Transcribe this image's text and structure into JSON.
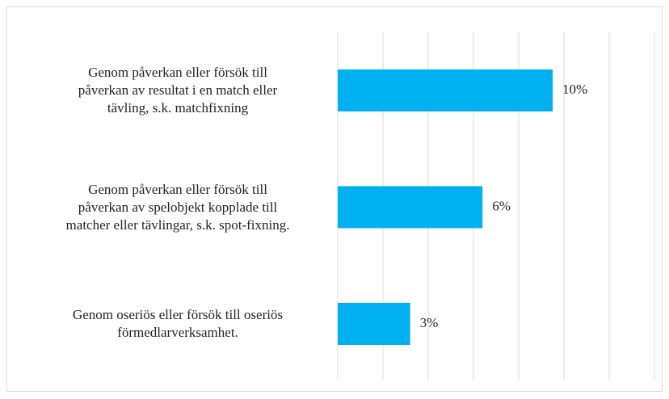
{
  "chart_data": {
    "type": "hbar",
    "categories": [
      "Genom påverkan eller försök till\npåverkan av resultat i en match eller\ntävling, s.k. matchfixning",
      "Genom påverkan eller försök till\npåverkan av spelobjekt kopplade till\nmatcher eller tävlingar, s.k. spot-fixning.",
      "Genom oseriös eller försök till oseriös\nförmedlarverksamhet."
    ],
    "values": [
      9.5,
      6.4,
      3.2
    ],
    "value_labels": [
      "10%",
      "6%",
      "3%"
    ],
    "color": "#00b0f0",
    "xlim": [
      0,
      14
    ],
    "xticks": [
      0,
      2,
      4,
      6,
      8,
      10,
      12,
      14
    ],
    "grid": true
  }
}
